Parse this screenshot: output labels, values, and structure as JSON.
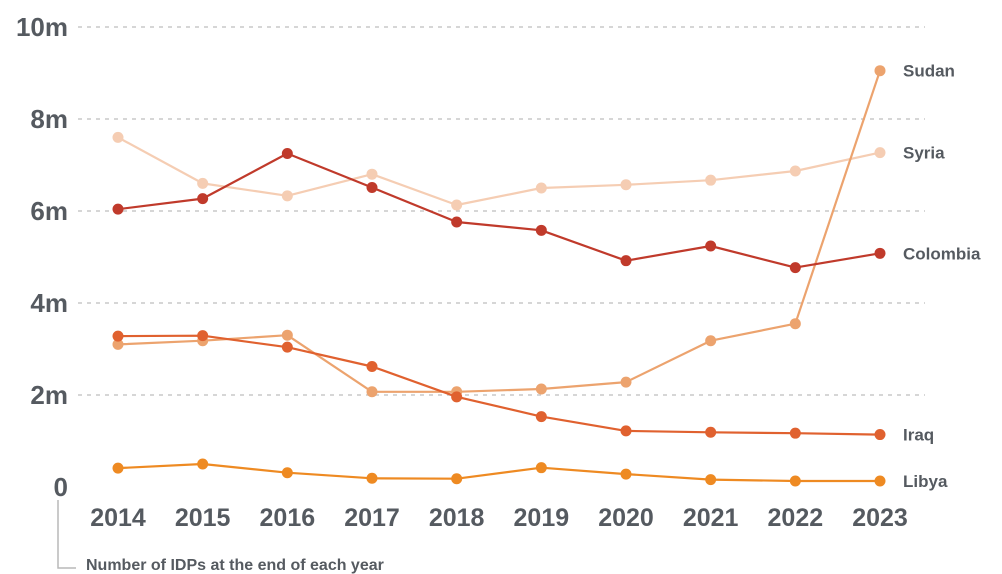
{
  "chart_data": {
    "type": "line",
    "title": "",
    "xlabel": "",
    "ylabel": "",
    "note": "Number of IDPs at the end of each year",
    "x": [
      2014,
      2015,
      2016,
      2017,
      2018,
      2019,
      2020,
      2021,
      2022,
      2023
    ],
    "x_tick_labels": [
      "2014",
      "2015",
      "2016",
      "2017",
      "2018",
      "2019",
      "2020",
      "2021",
      "2022",
      "2023"
    ],
    "y_ticks": [
      0,
      2,
      4,
      6,
      8,
      10
    ],
    "y_tick_labels": [
      "0",
      "2m",
      "4m",
      "6m",
      "8m",
      "10m"
    ],
    "ylim": [
      0,
      10
    ],
    "y_unit": "millions",
    "grid": true,
    "legend": "inline labels at line ends",
    "series": [
      {
        "name": "Syria",
        "color": "#f5cdb3",
        "values": [
          7.6,
          6.6,
          6.33,
          6.8,
          6.13,
          6.5,
          6.57,
          6.67,
          6.87,
          7.27
        ]
      },
      {
        "name": "Sudan",
        "color": "#eca36e",
        "values": [
          3.1,
          3.18,
          3.3,
          2.07,
          2.07,
          2.13,
          2.28,
          3.18,
          3.55,
          9.05
        ]
      },
      {
        "name": "Colombia",
        "color": "#c03a2b",
        "values": [
          6.04,
          6.27,
          7.25,
          6.51,
          5.76,
          5.58,
          4.92,
          5.24,
          4.77,
          5.08
        ]
      },
      {
        "name": "Iraq",
        "color": "#e0612f",
        "values": [
          3.28,
          3.29,
          3.04,
          2.62,
          1.96,
          1.53,
          1.22,
          1.19,
          1.17,
          1.14
        ]
      },
      {
        "name": "Libya",
        "color": "#ee8a22",
        "values": [
          0.41,
          0.5,
          0.31,
          0.19,
          0.18,
          0.42,
          0.28,
          0.16,
          0.13,
          0.13
        ]
      }
    ]
  }
}
